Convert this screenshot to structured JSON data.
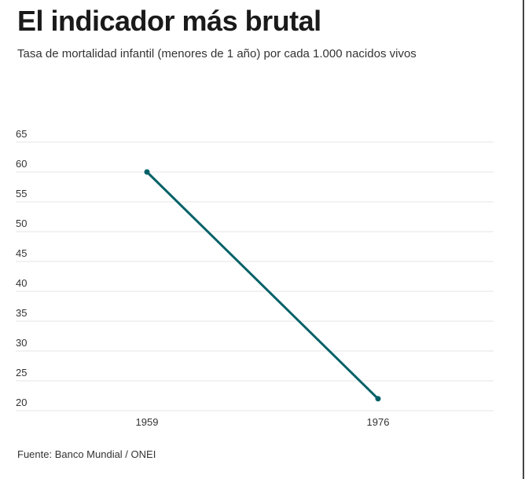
{
  "title": "El indicador más brutal",
  "subtitle": "Tasa de mortalidad infantil (menores de 1 año) por cada 1.000 nacidos vivos",
  "source": "Fuente: Banco Mundial / ONEI",
  "chart_data": {
    "type": "line",
    "title": "El indicador más brutal",
    "subtitle": "Tasa de mortalidad infantil (menores de 1 año) por cada 1.000 nacidos vivos",
    "x": [
      1959,
      1976
    ],
    "x_tick_labels": [
      "1959",
      "1976"
    ],
    "series": [
      {
        "values": [
          60,
          22
        ]
      }
    ],
    "ylim": [
      20,
      65
    ],
    "y_ticks": [
      20,
      25,
      30,
      35,
      40,
      45,
      50,
      55,
      60,
      65
    ],
    "grid": true,
    "color": "#006067"
  }
}
